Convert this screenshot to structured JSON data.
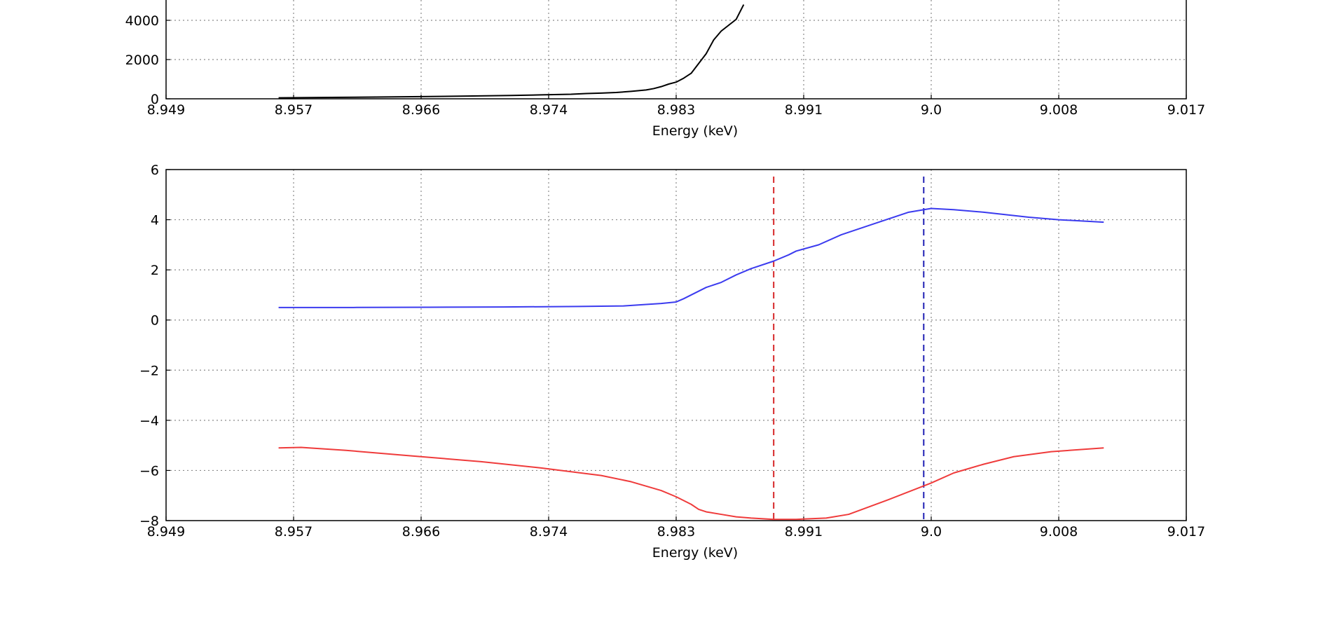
{
  "chart_data": [
    {
      "type": "line",
      "title": "",
      "xlabel": "Energy (keV)",
      "ylabel": "",
      "xlim": [
        8.949,
        9.017
      ],
      "ylim": [
        0,
        4000
      ],
      "x_tick_labels": [
        "8.949",
        "8.957",
        "8.966",
        "8.974",
        "8.983",
        "8.991",
        "9.0",
        "9.008",
        "9.017"
      ],
      "y_tick_labels": [
        "0",
        "2000",
        "4000"
      ],
      "y_ticks": [
        0,
        2000,
        4000
      ],
      "grid": true,
      "series": [
        {
          "color": "#000000",
          "x": [
            8.9565,
            8.96,
            8.963,
            8.966,
            8.969,
            8.972,
            8.974,
            8.976,
            8.977,
            8.978,
            8.979,
            8.98,
            8.981,
            8.9815,
            8.982,
            8.9825,
            8.983,
            8.9835,
            8.984,
            8.9845,
            8.985,
            8.9855,
            8.986,
            8.9865,
            8.987,
            8.9875
          ],
          "y": [
            50,
            70,
            90,
            110,
            140,
            170,
            200,
            230,
            270,
            290,
            320,
            380,
            450,
            520,
            620,
            750,
            850,
            1050,
            1300,
            1800,
            2300,
            3000,
            3450,
            3750,
            4050,
            4800
          ]
        }
      ]
    },
    {
      "type": "line",
      "title": "",
      "xlabel": "Energy (keV)",
      "ylabel": "",
      "xlim": [
        8.949,
        9.017
      ],
      "ylim": [
        -8,
        6
      ],
      "x_tick_labels": [
        "8.949",
        "8.957",
        "8.966",
        "8.974",
        "8.983",
        "8.991",
        "9.0",
        "9.008",
        "9.017"
      ],
      "y_tick_labels": [
        "6",
        "4",
        "2",
        "0",
        "−2",
        "−4",
        "−6",
        "−8"
      ],
      "y_ticks": [
        6,
        4,
        2,
        0,
        -2,
        -4,
        -6,
        -8
      ],
      "grid": true,
      "series": [
        {
          "color": "#3b3bef",
          "x": [
            8.9565,
            8.9615,
            8.9665,
            8.9715,
            8.9765,
            8.9795,
            8.981,
            8.982,
            8.983,
            8.9835,
            8.984,
            8.985,
            8.986,
            8.987,
            8.988,
            8.9895,
            8.9905,
            8.991,
            8.9925,
            8.994,
            8.996,
            8.9985,
            9.0,
            9.0015,
            9.0035,
            9.0065,
            9.0085,
            9.0115
          ],
          "y": [
            0.5,
            0.5,
            0.51,
            0.52,
            0.54,
            0.56,
            0.62,
            0.66,
            0.72,
            0.85,
            1.0,
            1.3,
            1.5,
            1.8,
            2.05,
            2.35,
            2.6,
            2.75,
            3.0,
            3.4,
            3.8,
            4.3,
            4.45,
            4.4,
            4.3,
            4.1,
            4.0,
            3.9
          ]
        },
        {
          "color": "#ef3b3b",
          "x": [
            8.9565,
            8.958,
            8.961,
            8.965,
            8.97,
            8.974,
            8.978,
            8.98,
            8.982,
            8.983,
            8.984,
            8.9845,
            8.985,
            8.986,
            8.987,
            8.988,
            8.9895,
            8.991,
            8.993,
            8.9945,
            8.997,
            9.0,
            9.0015,
            9.0035,
            9.0055,
            9.008,
            9.0115
          ],
          "y": [
            -5.1,
            -5.08,
            -5.2,
            -5.4,
            -5.65,
            -5.9,
            -6.2,
            -6.45,
            -6.8,
            -7.05,
            -7.35,
            -7.55,
            -7.65,
            -7.75,
            -7.85,
            -7.9,
            -7.95,
            -7.95,
            -7.9,
            -7.75,
            -7.2,
            -6.5,
            -6.1,
            -5.75,
            -5.45,
            -5.25,
            -5.1
          ]
        }
      ],
      "vertical_lines": [
        {
          "x": 8.9895,
          "color": "#d62728"
        },
        {
          "x": 8.9995,
          "color": "#1f1fb4"
        }
      ]
    }
  ]
}
